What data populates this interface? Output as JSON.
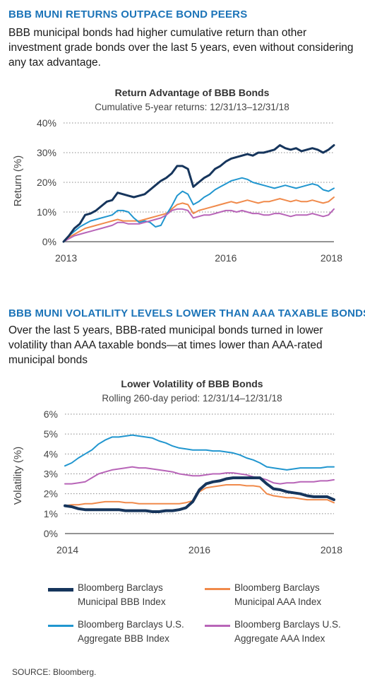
{
  "section1": {
    "heading": "BBB MUNI RETURNS OUTPACE BOND PEERS",
    "body": "BBB municipal bonds had higher cumulative return than other investment grade bonds over the last 5 years, even without considering any tax advantage."
  },
  "section2": {
    "heading": "BBB MUNI VOLATILITY LEVELS LOWER THAN AAA TAXABLE BONDS",
    "body": "Over the last 5 years, BBB-rated municipal bonds turned in lower volatility than AAA taxable bonds—at times lower than AAA-rated municipal bonds"
  },
  "source": "SOURCE: Bloomberg.",
  "colors": {
    "heading_blue": "#1c74b8",
    "muni_bbb": "#16355c",
    "muni_aaa": "#f08a4b",
    "agg_bbb": "#2196cf",
    "agg_aaa": "#b865b8"
  },
  "legend": [
    {
      "label_line1": "Bloomberg Barclays",
      "label_line2": "Municipal BBB Index",
      "color": "#16355c",
      "thick": true
    },
    {
      "label_line1": "Bloomberg Barclays",
      "label_line2": "Municipal AAA Index",
      "color": "#f08a4b",
      "thick": false
    },
    {
      "label_line1": "Bloomberg Barclays U.S.",
      "label_line2": "Aggregate BBB Index",
      "color": "#2196cf",
      "thick": false
    },
    {
      "label_line1": "Bloomberg Barclays U.S.",
      "label_line2": "Aggregate AAA Index",
      "color": "#b865b8",
      "thick": false
    }
  ],
  "chart_data": [
    {
      "type": "line",
      "title": "Return Advantage of BBB Bonds",
      "subtitle": "Cumulative 5-year returns: 12/31/13–12/31/18",
      "ylabel": "Return (%)",
      "xlim": [
        2013,
        2018
      ],
      "ylim": [
        0,
        40
      ],
      "yticks": [
        0,
        10,
        20,
        30,
        40
      ],
      "ytick_labels": [
        "0%",
        "10%",
        "20%",
        "30%",
        "40%"
      ],
      "xticks": [
        2013,
        2016,
        2018
      ],
      "xtick_labels": [
        "2013",
        "2016",
        "2018"
      ],
      "grid": "horizontal dotted",
      "x": [
        2013.0,
        2013.1,
        2013.2,
        2013.3,
        2013.4,
        2013.5,
        2013.6,
        2013.7,
        2013.8,
        2013.9,
        2014.0,
        2014.1,
        2014.2,
        2014.3,
        2014.4,
        2014.5,
        2014.6,
        2014.7,
        2014.8,
        2014.9,
        2015.0,
        2015.1,
        2015.2,
        2015.3,
        2015.4,
        2015.5,
        2015.6,
        2015.7,
        2015.8,
        2015.9,
        2016.0,
        2016.1,
        2016.2,
        2016.3,
        2016.4,
        2016.5,
        2016.6,
        2016.7,
        2016.8,
        2016.9,
        2017.0,
        2017.1,
        2017.2,
        2017.3,
        2017.4,
        2017.5,
        2017.6,
        2017.7,
        2017.8,
        2017.9,
        2018.0
      ],
      "series": [
        {
          "name": "Bloomberg Barclays Municipal BBB Index",
          "color": "#16355c",
          "width": 3,
          "values": [
            0,
            2,
            4.5,
            6,
            9,
            9.5,
            10.5,
            12,
            13.5,
            14,
            16.5,
            16,
            15.5,
            15,
            15.5,
            16,
            17.5,
            19,
            20.5,
            21.5,
            23,
            25.5,
            25.5,
            24.5,
            18.5,
            20,
            21.5,
            22.5,
            24.5,
            25.5,
            27,
            28,
            28.5,
            29,
            29.5,
            29,
            30,
            30,
            30.5,
            31,
            32.5,
            31.5,
            31,
            31.5,
            30.5,
            31,
            31.5,
            31,
            30,
            31,
            32.5
          ]
        },
        {
          "name": "Bloomberg Barclays Municipal AAA Index",
          "color": "#f08a4b",
          "width": 2,
          "values": [
            0,
            1.5,
            2.5,
            3.5,
            4.5,
            5,
            5.5,
            6,
            6.5,
            7,
            7.5,
            7,
            7,
            7,
            7,
            7.5,
            8,
            8.5,
            9,
            9.5,
            11,
            12.5,
            13,
            12.5,
            9.5,
            10.5,
            11,
            11.5,
            12,
            12.5,
            13,
            13.5,
            13,
            13.5,
            14,
            13.5,
            13,
            13.5,
            13.5,
            14,
            14.5,
            14,
            13.5,
            14,
            13.5,
            13.5,
            14,
            13.5,
            13,
            13.5,
            15
          ]
        },
        {
          "name": "Bloomberg Barclays U.S. Aggregate BBB Index",
          "color": "#2196cf",
          "width": 2,
          "values": [
            0,
            2,
            3.5,
            5,
            6,
            7,
            7.5,
            8,
            8.5,
            9,
            10.5,
            10.5,
            10,
            8,
            6.5,
            7,
            6.5,
            5,
            5.5,
            9,
            12,
            15.5,
            17,
            16,
            12.5,
            13.5,
            15,
            16,
            17.5,
            18.5,
            19.5,
            20.5,
            21,
            21.5,
            21,
            20,
            19.5,
            19,
            18.5,
            18,
            18.5,
            19,
            18.5,
            18,
            18.5,
            19,
            19.5,
            19,
            17.5,
            17,
            18
          ]
        },
        {
          "name": "Bloomberg Barclays U.S. Aggregate AAA Index",
          "color": "#b865b8",
          "width": 2,
          "values": [
            0,
            1,
            2,
            2.5,
            3,
            3.5,
            4,
            4.5,
            5,
            5.5,
            6.5,
            6.5,
            6,
            6,
            6,
            6.5,
            7,
            7.5,
            8,
            9,
            10.5,
            11,
            11,
            10.5,
            8,
            8.5,
            9,
            9,
            9.5,
            10,
            10.5,
            10.5,
            10,
            10.5,
            10,
            9.5,
            9.5,
            9,
            9,
            9.5,
            9.5,
            9,
            8.5,
            9,
            9,
            9,
            9.5,
            9,
            8.5,
            9,
            11
          ]
        }
      ]
    },
    {
      "type": "line",
      "title": "Lower Volatility of BBB Bonds",
      "subtitle": "Rolling 260-day period: 12/31/14–12/31/18",
      "ylabel": "Volatility (%)",
      "xlim": [
        2014,
        2018
      ],
      "ylim": [
        0,
        6
      ],
      "yticks": [
        0,
        1,
        2,
        3,
        4,
        5,
        6
      ],
      "ytick_labels": [
        "0%",
        "1%",
        "2%",
        "3%",
        "4%",
        "5%",
        "6%"
      ],
      "xticks": [
        2014,
        2016,
        2018
      ],
      "xtick_labels": [
        "2014",
        "2016",
        "2018"
      ],
      "grid": "horizontal dotted",
      "x": [
        2014.0,
        2014.1,
        2014.2,
        2014.3,
        2014.4,
        2014.5,
        2014.6,
        2014.7,
        2014.8,
        2014.9,
        2015.0,
        2015.1,
        2015.2,
        2015.3,
        2015.4,
        2015.5,
        2015.6,
        2015.7,
        2015.8,
        2015.9,
        2016.0,
        2016.1,
        2016.2,
        2016.3,
        2016.4,
        2016.5,
        2016.6,
        2016.7,
        2016.8,
        2016.9,
        2017.0,
        2017.1,
        2017.2,
        2017.3,
        2017.4,
        2017.5,
        2017.6,
        2017.7,
        2017.8,
        2017.9,
        2018.0
      ],
      "series": [
        {
          "name": "Bloomberg Barclays Municipal BBB Index",
          "color": "#16355c",
          "width": 4,
          "values": [
            1.4,
            1.35,
            1.25,
            1.2,
            1.2,
            1.2,
            1.2,
            1.2,
            1.2,
            1.15,
            1.15,
            1.15,
            1.15,
            1.1,
            1.1,
            1.15,
            1.15,
            1.2,
            1.3,
            1.6,
            2.2,
            2.5,
            2.6,
            2.65,
            2.75,
            2.8,
            2.8,
            2.8,
            2.8,
            2.8,
            2.5,
            2.25,
            2.2,
            2.1,
            2.05,
            2.0,
            1.9,
            1.85,
            1.85,
            1.85,
            1.7
          ]
        },
        {
          "name": "Bloomberg Barclays Municipal AAA Index",
          "color": "#f08a4b",
          "width": 2,
          "values": [
            1.4,
            1.45,
            1.45,
            1.5,
            1.5,
            1.55,
            1.6,
            1.6,
            1.6,
            1.55,
            1.55,
            1.5,
            1.5,
            1.5,
            1.5,
            1.5,
            1.5,
            1.5,
            1.55,
            1.65,
            2.1,
            2.3,
            2.35,
            2.4,
            2.45,
            2.45,
            2.45,
            2.4,
            2.4,
            2.35,
            2.0,
            1.9,
            1.85,
            1.8,
            1.8,
            1.75,
            1.7,
            1.7,
            1.7,
            1.7,
            1.55
          ]
        },
        {
          "name": "Bloomberg Barclays U.S. Aggregate BBB Index",
          "color": "#2196cf",
          "width": 2,
          "values": [
            3.4,
            3.55,
            3.8,
            4.0,
            4.2,
            4.5,
            4.7,
            4.85,
            4.85,
            4.9,
            4.95,
            4.9,
            4.85,
            4.8,
            4.65,
            4.55,
            4.4,
            4.3,
            4.25,
            4.2,
            4.2,
            4.2,
            4.15,
            4.15,
            4.1,
            4.05,
            3.95,
            3.8,
            3.7,
            3.55,
            3.35,
            3.3,
            3.25,
            3.2,
            3.25,
            3.3,
            3.3,
            3.3,
            3.3,
            3.35,
            3.35
          ]
        },
        {
          "name": "Bloomberg Barclays U.S. Aggregate AAA Index",
          "color": "#b865b8",
          "width": 2,
          "values": [
            2.5,
            2.5,
            2.55,
            2.6,
            2.8,
            3.0,
            3.1,
            3.2,
            3.25,
            3.3,
            3.35,
            3.3,
            3.3,
            3.25,
            3.2,
            3.15,
            3.1,
            3.0,
            2.95,
            2.9,
            2.9,
            2.95,
            3.0,
            3.0,
            3.05,
            3.05,
            3.0,
            2.95,
            2.85,
            2.8,
            2.7,
            2.55,
            2.5,
            2.55,
            2.55,
            2.6,
            2.6,
            2.6,
            2.65,
            2.65,
            2.7
          ]
        }
      ]
    }
  ]
}
